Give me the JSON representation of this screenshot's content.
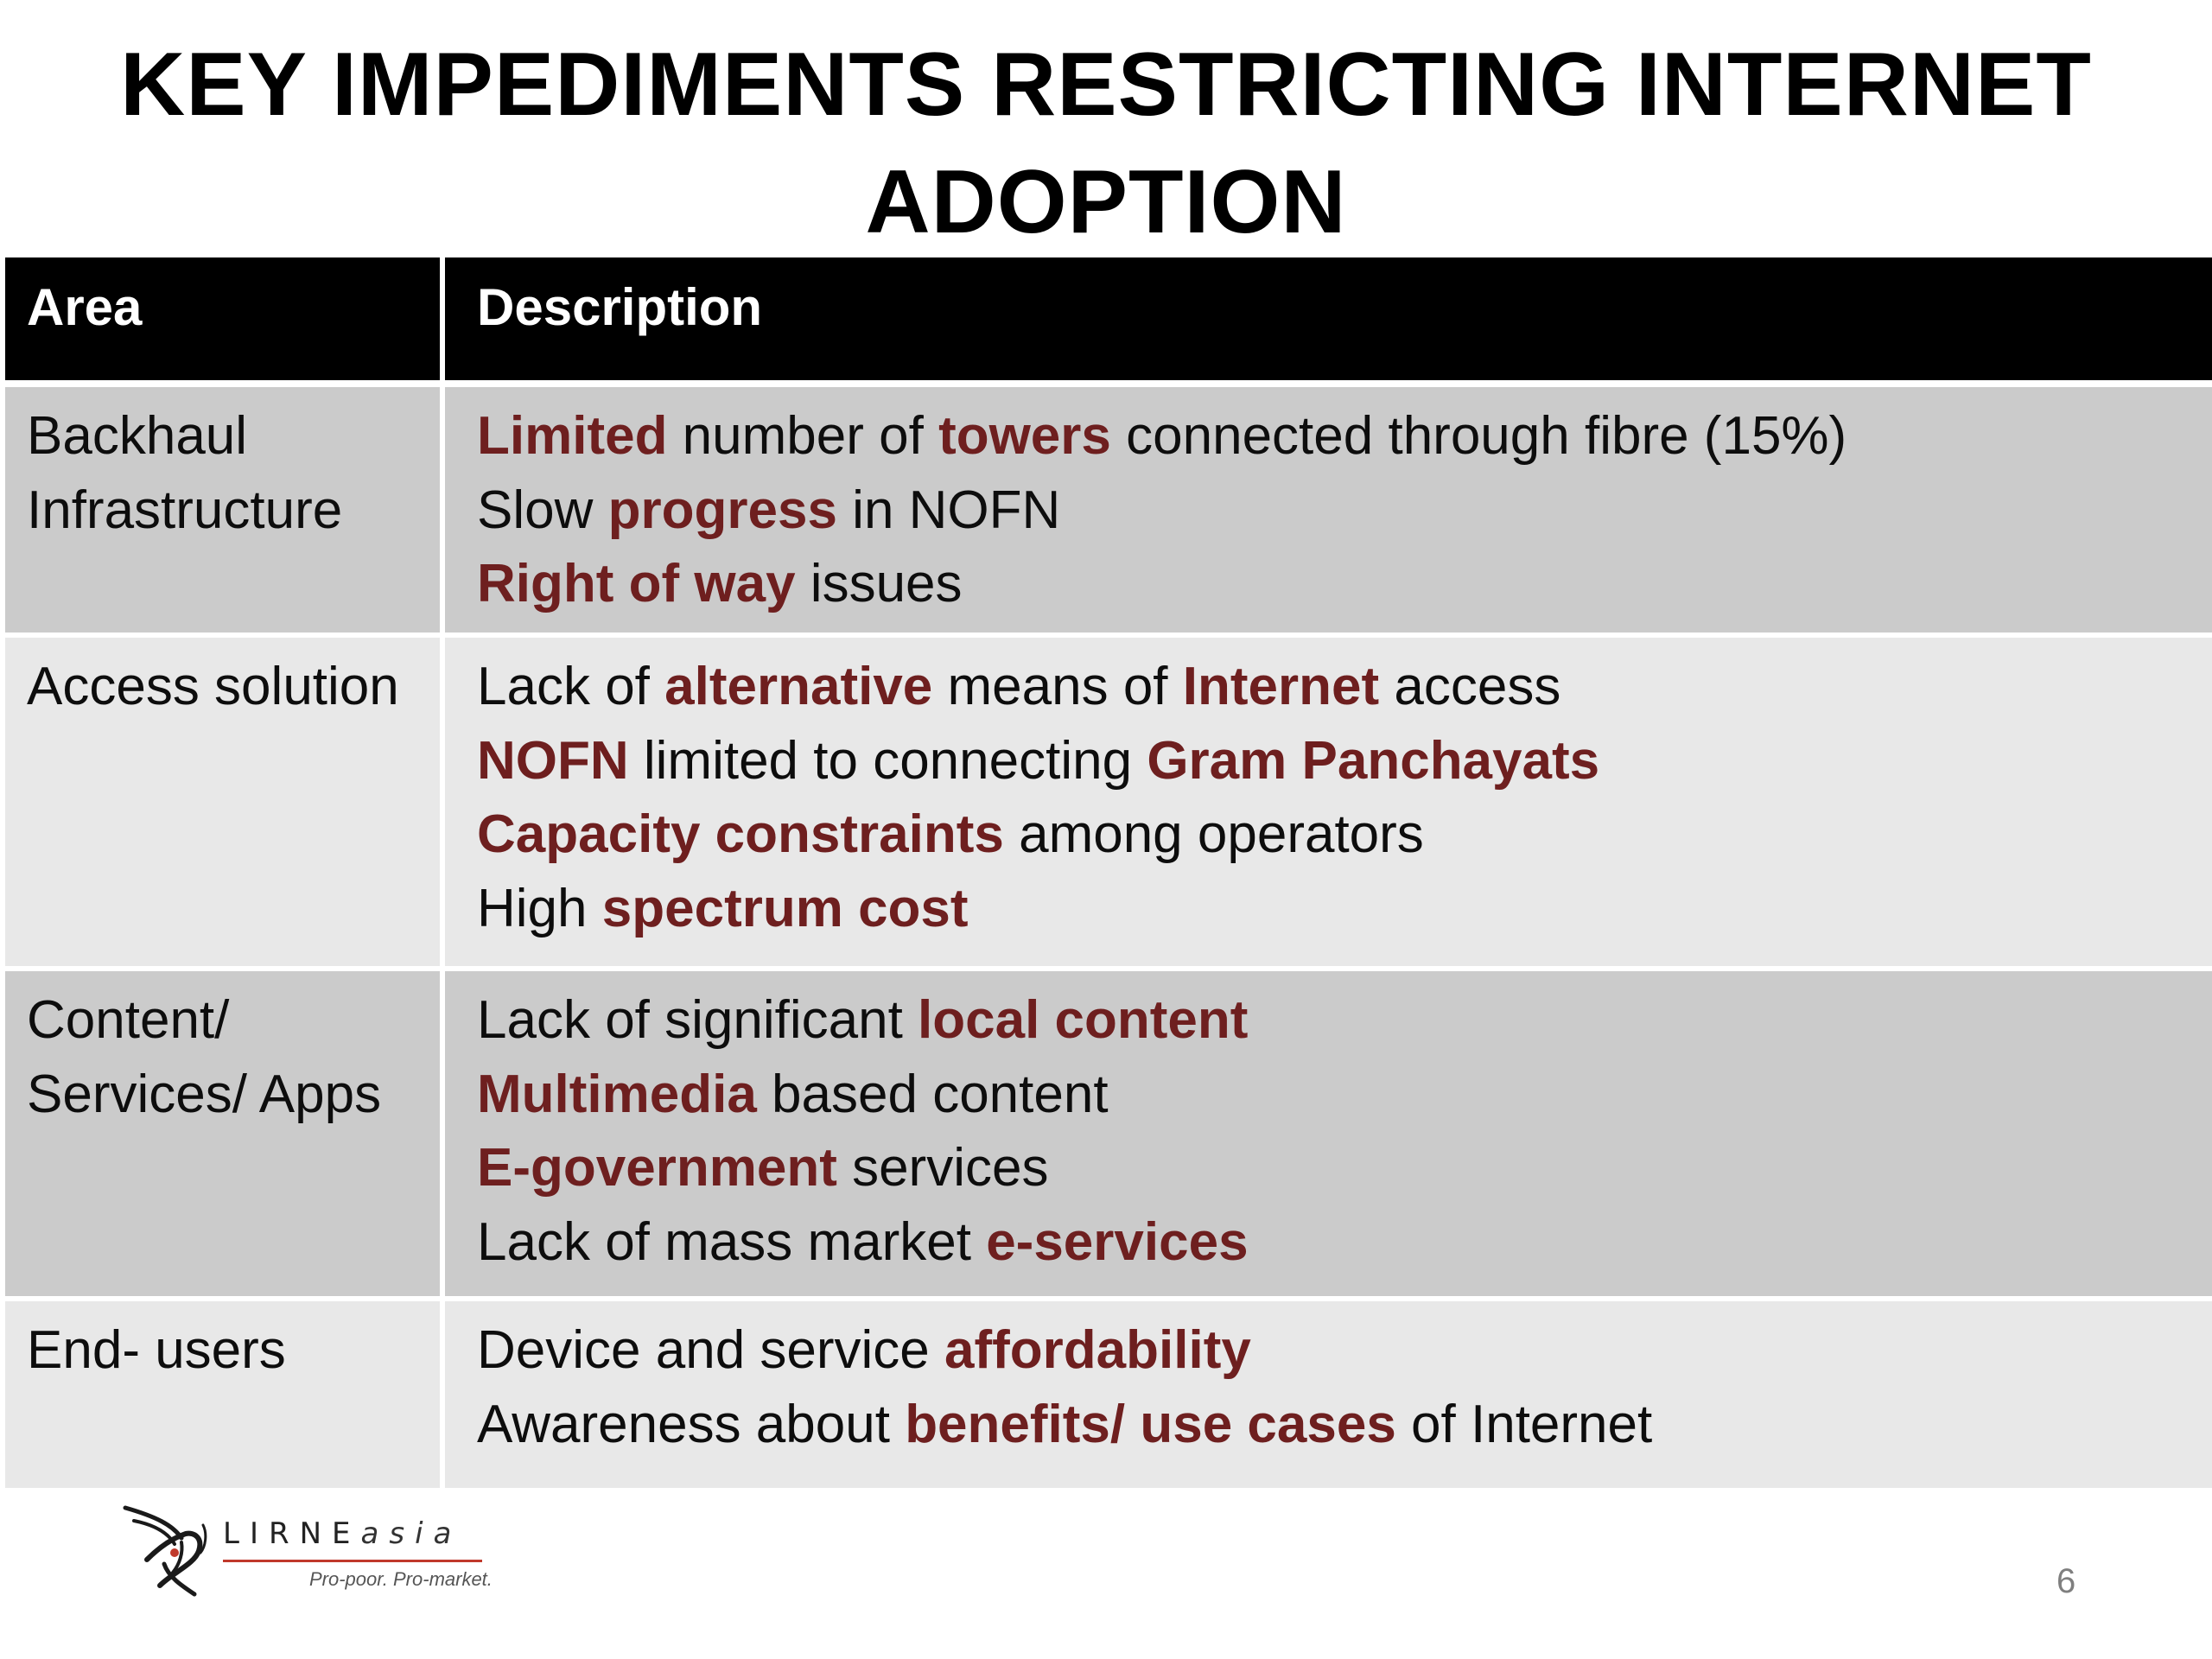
{
  "title": {
    "line1": "KEY IMPEDIMENTS RESTRICTING INTERNET",
    "line2": "ADOPTION"
  },
  "table": {
    "headers": {
      "area": "Area",
      "description": "Description"
    },
    "rows": [
      {
        "area_lines": [
          "Backhaul",
          "Infrastructure"
        ],
        "lines": [
          [
            {
              "t": "Limited",
              "hl": true
            },
            {
              "t": " number of ",
              "hl": false
            },
            {
              "t": "towers",
              "hl": true
            },
            {
              "t": " connected through fibre (15%)",
              "hl": false
            }
          ],
          [
            {
              "t": "Slow ",
              "hl": false
            },
            {
              "t": "progress",
              "hl": true
            },
            {
              "t": " in NOFN",
              "hl": false
            }
          ],
          [
            {
              "t": "Right of way",
              "hl": true
            },
            {
              "t": " issues",
              "hl": false
            }
          ]
        ]
      },
      {
        "area_lines": [
          "Access solution"
        ],
        "lines": [
          [
            {
              "t": "Lack of ",
              "hl": false
            },
            {
              "t": "alternative",
              "hl": true
            },
            {
              "t": " means of ",
              "hl": false
            },
            {
              "t": "Internet",
              "hl": true
            },
            {
              "t": " access",
              "hl": false
            }
          ],
          [
            {
              "t": "NOFN",
              "hl": true
            },
            {
              "t": " limited to connecting ",
              "hl": false
            },
            {
              "t": "Gram Panchayats",
              "hl": true
            }
          ],
          [
            {
              "t": "Capacity constraints",
              "hl": true
            },
            {
              "t": " among operators",
              "hl": false
            }
          ],
          [
            {
              "t": "High ",
              "hl": false
            },
            {
              "t": "spectrum cost",
              "hl": true
            }
          ]
        ]
      },
      {
        "area_lines": [
          "Content/",
          "Services/ Apps"
        ],
        "lines": [
          [
            {
              "t": "Lack of significant ",
              "hl": false
            },
            {
              "t": "local content",
              "hl": true
            }
          ],
          [
            {
              "t": "Multimedia",
              "hl": true
            },
            {
              "t": " based content",
              "hl": false
            }
          ],
          [
            {
              "t": "E-government",
              "hl": true
            },
            {
              "t": " services",
              "hl": false
            }
          ],
          [
            {
              "t": "Lack of mass market ",
              "hl": false
            },
            {
              "t": "e-services",
              "hl": true
            }
          ]
        ]
      },
      {
        "area_lines": [
          "End- users"
        ],
        "lines": [
          [
            {
              "t": "Device and service ",
              "hl": false
            },
            {
              "t": "affordability",
              "hl": true
            }
          ],
          [
            {
              "t": "Awareness about ",
              "hl": false
            },
            {
              "t": "benefits/ use cases",
              "hl": true
            },
            {
              "t": " of Internet",
              "hl": false
            }
          ]
        ]
      }
    ]
  },
  "logo": {
    "name_main": "LIRNE",
    "name_suffix": "asia",
    "tagline": "Pro-poor. Pro-market."
  },
  "page_number": "6",
  "colors": {
    "highlight": "#6e1f1f",
    "header_bg": "#000000",
    "row_dark": "#cbcbcb",
    "row_light": "#e8e8e8"
  }
}
